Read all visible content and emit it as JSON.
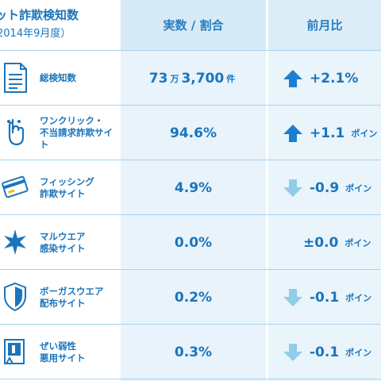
{
  "header": {
    "title_line1": "ット詐欺検知数",
    "title_line2": "2014年9月度）",
    "col_value": "実数 / 割合",
    "col_compare": "前月比"
  },
  "rows": [
    {
      "icon": "document-list-icon",
      "label": [
        "総検知数"
      ],
      "value_main": "73",
      "value_unit1": "万",
      "value_rest": "3,700",
      "value_unit2": "件",
      "trend": "up",
      "change": "+2.1%",
      "change_unit": ""
    },
    {
      "icon": "hand-cursor-icon",
      "label": [
        "ワンクリック・",
        "不当請求詐欺サイト"
      ],
      "value_main": "94.6%",
      "trend": "up",
      "change": "+1.1",
      "change_unit": "ポイン"
    },
    {
      "icon": "credit-card-icon",
      "label": [
        "フィッシング",
        "詐欺サイト"
      ],
      "value_main": "4.9%",
      "trend": "down",
      "change": "-0.9",
      "change_unit": "ポイン"
    },
    {
      "icon": "malware-burst-icon",
      "label": [
        "マルウエア",
        "感染サイト"
      ],
      "value_main": "0.0%",
      "trend": "flat",
      "change": "±0.0",
      "change_unit": "ポイン"
    },
    {
      "icon": "fake-shield-icon",
      "label": [
        "ボーガスウエア",
        "配布サイト"
      ],
      "value_main": "0.2%",
      "trend": "down",
      "change": "-0.1",
      "change_unit": "ポイン"
    },
    {
      "icon": "vulnerable-window-icon",
      "label": [
        "ぜい弱性",
        "悪用サイト"
      ],
      "value_main": "0.3%",
      "trend": "down",
      "change": "-0.1",
      "change_unit": "ポイン"
    }
  ],
  "colors": {
    "text": "#1a75bc",
    "arrow_up": "#1a7fd0",
    "arrow_down": "#8fcde9",
    "col_bg": "#e8f3fb",
    "separator": "#a9d2ee"
  }
}
